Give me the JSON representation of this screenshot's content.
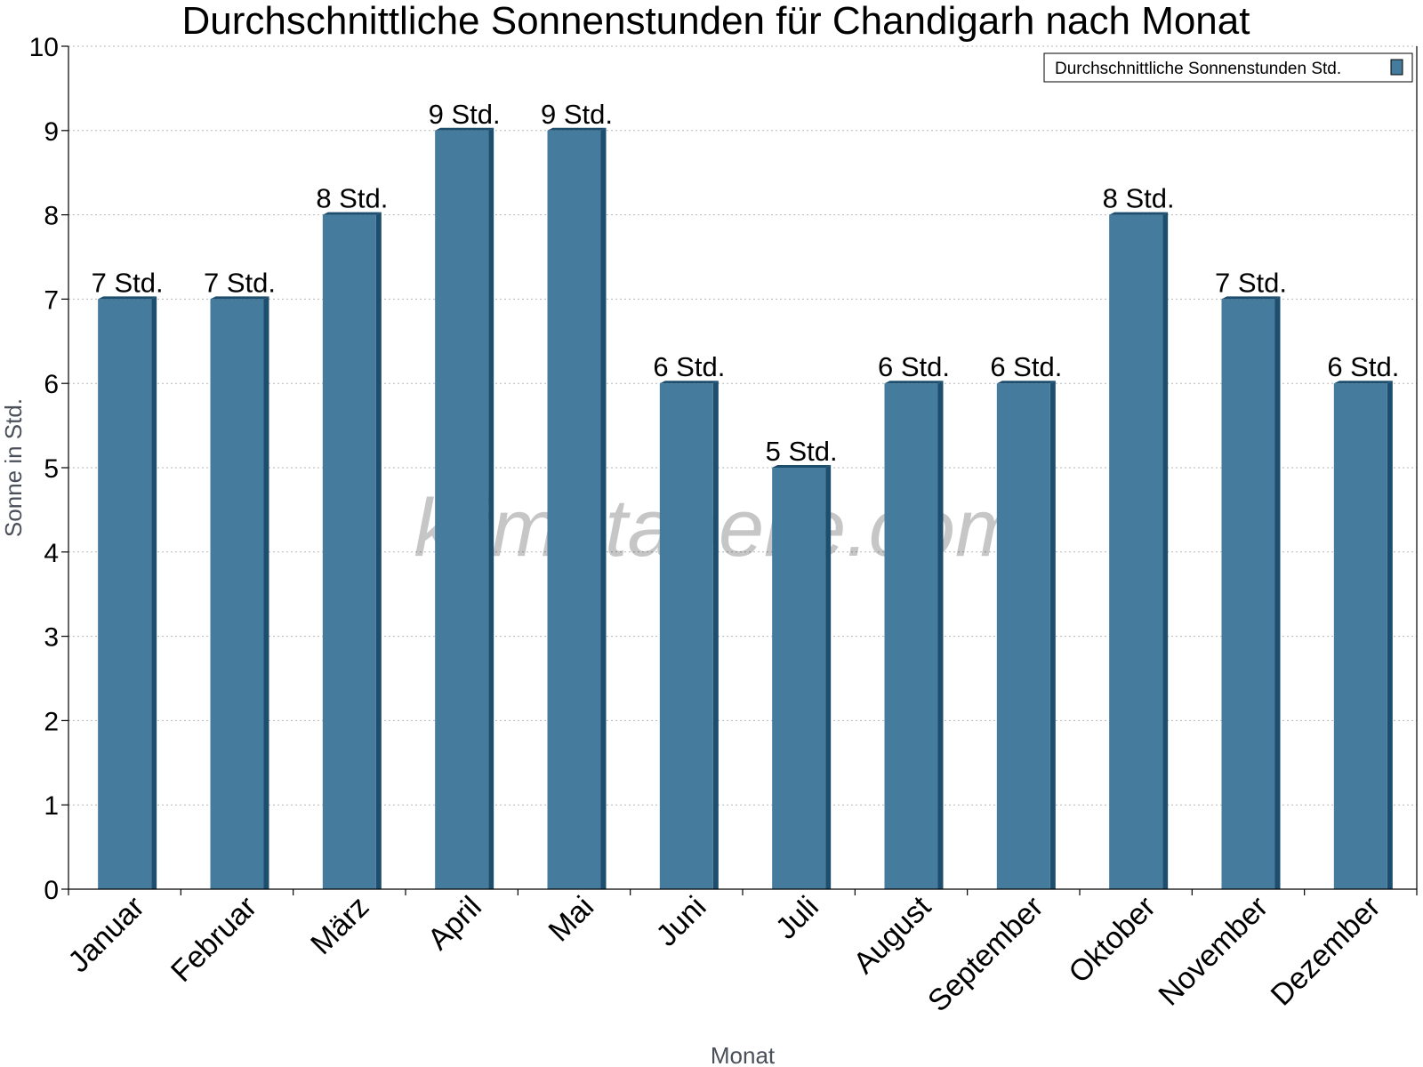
{
  "chart_data": {
    "type": "bar",
    "title": "Durchschnittliche Sonnenstunden für Chandigarh nach Monat",
    "xlabel": "Monat",
    "ylabel": "Sonne in Std.",
    "categories": [
      "Januar",
      "Februar",
      "März",
      "April",
      "Mai",
      "Juni",
      "Juli",
      "August",
      "September",
      "Oktober",
      "November",
      "Dezember"
    ],
    "series": [
      {
        "name": "Durchschnittliche Sonnenstunden Std.",
        "values": [
          7,
          7,
          8,
          9,
          9,
          6,
          5,
          6,
          6,
          8,
          7,
          6
        ],
        "data_labels": [
          "7 Std.",
          "7 Std.",
          "8 Std.",
          "9 Std.",
          "9 Std.",
          "6 Std.",
          "5 Std.",
          "6 Std.",
          "6 Std.",
          "8 Std.",
          "7 Std.",
          "6 Std."
        ],
        "color": "#457b9d",
        "edge_color": "#1d4e6e"
      }
    ],
    "ylim": [
      0,
      10
    ],
    "yticks": [
      "0",
      "1",
      "2",
      "3",
      "4",
      "5",
      "6",
      "7",
      "8",
      "9",
      "10"
    ],
    "grid": true,
    "legend_position": "top-right",
    "watermark": "klimatabelle.com"
  }
}
